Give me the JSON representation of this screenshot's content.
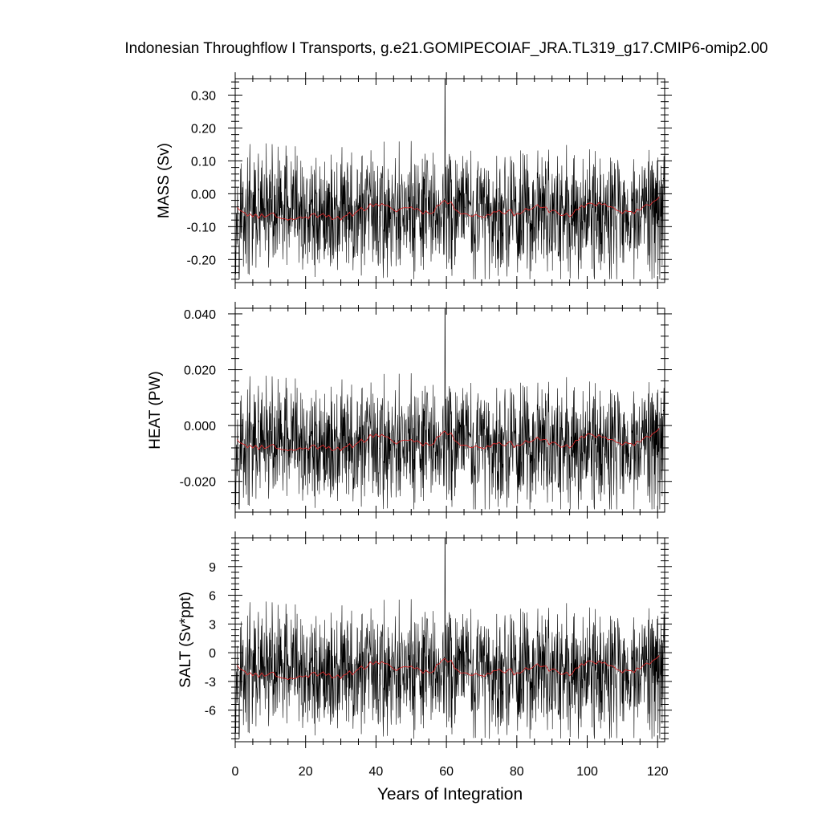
{
  "title": "Indonesian Throughflow I Transports, g.e21.GOMIPECOIAF_JRA.TL319_g17.CMIP6-omip2.00",
  "colors": {
    "monthly": "#000000",
    "annual": "#d62728",
    "frame": "#000000"
  },
  "chart_data": [
    {
      "type": "line",
      "ylabel": "MASS (Sv)",
      "xlim": [
        0,
        122
      ],
      "ylim": [
        -0.27,
        0.35
      ],
      "yticks": [
        0.3,
        0.2,
        0.1,
        0.0,
        -0.1,
        -0.2
      ],
      "ytick_labels": [
        "0.30",
        "0.20",
        "0.10",
        "0.00",
        "-0.10",
        "-0.20"
      ],
      "series": [
        {
          "role": "monthly",
          "x_start": 0,
          "x_step": 0.0833,
          "n": 1464,
          "mean": -0.06,
          "amplitude": 0.18,
          "min": -0.26,
          "max": 0.35
        },
        {
          "role": "annual",
          "x": [
            0.5,
            5,
            10,
            15,
            20,
            25,
            30,
            35,
            40,
            45,
            50,
            55,
            59.5,
            65,
            70,
            75,
            80,
            85,
            90,
            95,
            100,
            105,
            110,
            115,
            120.5
          ],
          "values": [
            -0.04,
            -0.07,
            -0.06,
            -0.08,
            -0.07,
            -0.06,
            -0.08,
            -0.05,
            -0.03,
            -0.05,
            -0.04,
            -0.06,
            -0.02,
            -0.06,
            -0.07,
            -0.05,
            -0.06,
            -0.04,
            -0.05,
            -0.07,
            -0.03,
            -0.03,
            -0.06,
            -0.05,
            -0.01
          ]
        }
      ]
    },
    {
      "type": "line",
      "ylabel": "HEAT (PW)",
      "xlim": [
        0,
        122
      ],
      "ylim": [
        -0.031,
        0.042
      ],
      "yticks": [
        0.04,
        0.02,
        0.0,
        -0.02
      ],
      "ytick_labels": [
        "0.040",
        "0.020",
        "0.000",
        "-0.020"
      ],
      "series": [
        {
          "role": "monthly",
          "x_start": 0,
          "x_step": 0.0833,
          "n": 1464,
          "mean": -0.007,
          "amplitude": 0.021,
          "min": -0.03,
          "max": 0.042
        },
        {
          "role": "annual",
          "x": [
            0.5,
            5,
            10,
            15,
            20,
            25,
            30,
            35,
            40,
            45,
            50,
            55,
            59.5,
            65,
            70,
            75,
            80,
            85,
            90,
            95,
            100,
            105,
            110,
            115,
            120.5
          ],
          "values": [
            -0.005,
            -0.008,
            -0.007,
            -0.009,
            -0.008,
            -0.007,
            -0.009,
            -0.006,
            -0.003,
            -0.006,
            -0.005,
            -0.007,
            -0.002,
            -0.007,
            -0.008,
            -0.006,
            -0.007,
            -0.005,
            -0.006,
            -0.008,
            -0.003,
            -0.004,
            -0.007,
            -0.006,
            -0.001
          ]
        }
      ]
    },
    {
      "type": "line",
      "ylabel": "SALT (Sv*ppt)",
      "xlabel": "Years of Integration",
      "xlim": [
        0,
        122
      ],
      "ylim": [
        -9.3,
        12
      ],
      "xticks": [
        0,
        20,
        40,
        60,
        80,
        100,
        120
      ],
      "xtick_labels": [
        "0",
        "20",
        "40",
        "60",
        "80",
        "100",
        "120"
      ],
      "yticks": [
        9,
        6,
        3,
        0,
        -3,
        -6
      ],
      "ytick_labels": [
        "9",
        "6",
        "3",
        "0",
        "-3",
        "-6"
      ],
      "series": [
        {
          "role": "monthly",
          "x_start": 0,
          "x_step": 0.0833,
          "n": 1464,
          "mean": -2.0,
          "amplitude": 6.2,
          "min": -9.0,
          "max": 12.0
        },
        {
          "role": "annual",
          "x": [
            0.5,
            5,
            10,
            15,
            20,
            25,
            30,
            35,
            40,
            45,
            50,
            55,
            59.5,
            65,
            70,
            75,
            80,
            85,
            90,
            95,
            100,
            105,
            110,
            115,
            120.5
          ],
          "values": [
            -1.3,
            -2.4,
            -2.1,
            -2.8,
            -2.4,
            -2.0,
            -2.7,
            -1.7,
            -0.9,
            -1.7,
            -1.4,
            -2.1,
            -0.6,
            -2.1,
            -2.4,
            -1.7,
            -2.1,
            -1.4,
            -1.7,
            -2.4,
            -0.9,
            -1.0,
            -2.1,
            -1.7,
            -0.3
          ]
        }
      ]
    }
  ]
}
